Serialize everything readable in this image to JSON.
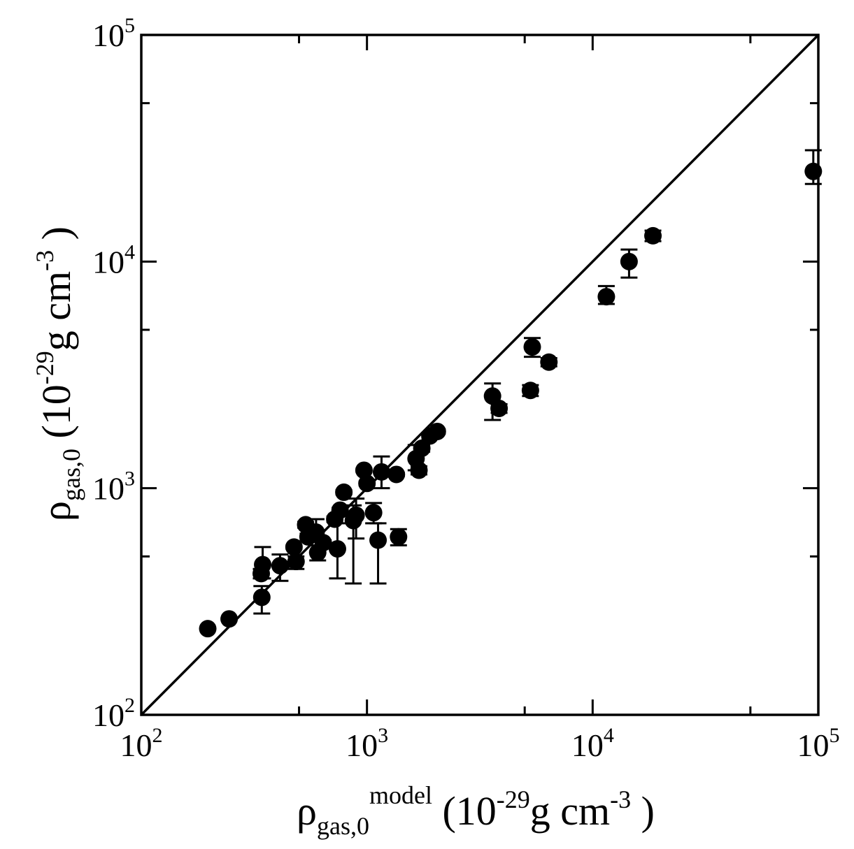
{
  "chart_data": {
    "type": "scatter",
    "title": "",
    "x_scale": "log",
    "y_scale": "log",
    "xlim": [
      100,
      100000
    ],
    "ylim": [
      100,
      100000
    ],
    "grid": false,
    "legend": "none",
    "xlabel": {
      "symbol": "ρ",
      "subscript": "gas,0",
      "superscript": "model",
      "open": " (10",
      "exponent": "-29",
      "unit": "g cm",
      "unit_exponent": "-3",
      "close": " )"
    },
    "ylabel": {
      "symbol": "ρ",
      "subscript": "gas,0",
      "open": " (10",
      "exponent": "-29",
      "unit": "g cm",
      "unit_exponent": "-3",
      "close": " )"
    },
    "x_ticks": [
      {
        "value": 100,
        "base": "10",
        "exp": "2"
      },
      {
        "value": 1000,
        "base": "10",
        "exp": "3"
      },
      {
        "value": 10000,
        "base": "10",
        "exp": "4"
      },
      {
        "value": 100000,
        "base": "10",
        "exp": "5"
      }
    ],
    "y_ticks": [
      {
        "value": 100,
        "base": "10",
        "exp": "2"
      },
      {
        "value": 1000,
        "base": "10",
        "exp": "3"
      },
      {
        "value": 10000,
        "base": "10",
        "exp": "4"
      },
      {
        "value": 100000,
        "base": "10",
        "exp": "5"
      }
    ],
    "reference_line": {
      "from": [
        100,
        100
      ],
      "to": [
        100000,
        100000
      ],
      "color": "#000000"
    },
    "marker_color": "#000000",
    "series": [
      {
        "points": [
          {
            "x": 197,
            "y": 240,
            "lo": 240,
            "hi": 240
          },
          {
            "x": 245,
            "y": 265,
            "lo": 265,
            "hi": 265
          },
          {
            "x": 342,
            "y": 330,
            "lo": 280,
            "hi": 370
          },
          {
            "x": 340,
            "y": 420,
            "lo": 400,
            "hi": 440
          },
          {
            "x": 345,
            "y": 460,
            "lo": 400,
            "hi": 550
          },
          {
            "x": 412,
            "y": 455,
            "lo": 390,
            "hi": 510
          },
          {
            "x": 485,
            "y": 475,
            "lo": 440,
            "hi": 500
          },
          {
            "x": 475,
            "y": 550,
            "lo": 540,
            "hi": 560
          },
          {
            "x": 535,
            "y": 690,
            "lo": 670,
            "hi": 710
          },
          {
            "x": 548,
            "y": 610,
            "lo": 590,
            "hi": 630
          },
          {
            "x": 595,
            "y": 640,
            "lo": 620,
            "hi": 730
          },
          {
            "x": 605,
            "y": 520,
            "lo": 480,
            "hi": 560
          },
          {
            "x": 640,
            "y": 575,
            "lo": 560,
            "hi": 590
          },
          {
            "x": 720,
            "y": 730,
            "lo": 710,
            "hi": 750
          },
          {
            "x": 740,
            "y": 540,
            "lo": 400,
            "hi": 700
          },
          {
            "x": 760,
            "y": 800,
            "lo": 780,
            "hi": 820
          },
          {
            "x": 790,
            "y": 960,
            "lo": 940,
            "hi": 980
          },
          {
            "x": 870,
            "y": 720,
            "lo": 380,
            "hi": 840
          },
          {
            "x": 895,
            "y": 760,
            "lo": 600,
            "hi": 900
          },
          {
            "x": 970,
            "y": 1200,
            "lo": 1180,
            "hi": 1220
          },
          {
            "x": 1000,
            "y": 1050,
            "lo": 1030,
            "hi": 1070
          },
          {
            "x": 1070,
            "y": 780,
            "lo": 700,
            "hi": 860
          },
          {
            "x": 1120,
            "y": 590,
            "lo": 380,
            "hi": 700
          },
          {
            "x": 1160,
            "y": 1180,
            "lo": 1000,
            "hi": 1380
          },
          {
            "x": 1350,
            "y": 1150,
            "lo": 1130,
            "hi": 1170
          },
          {
            "x": 1380,
            "y": 610,
            "lo": 560,
            "hi": 660
          },
          {
            "x": 1650,
            "y": 1350,
            "lo": 1200,
            "hi": 1550
          },
          {
            "x": 1700,
            "y": 1200,
            "lo": 1150,
            "hi": 1250
          },
          {
            "x": 1750,
            "y": 1500,
            "lo": 1450,
            "hi": 1550
          },
          {
            "x": 1900,
            "y": 1700,
            "lo": 1650,
            "hi": 1750
          },
          {
            "x": 2050,
            "y": 1780,
            "lo": 1740,
            "hi": 1820
          },
          {
            "x": 3600,
            "y": 2550,
            "lo": 2000,
            "hi": 2900
          },
          {
            "x": 3850,
            "y": 2250,
            "lo": 2150,
            "hi": 2350
          },
          {
            "x": 5300,
            "y": 2700,
            "lo": 2550,
            "hi": 2850
          },
          {
            "x": 5400,
            "y": 4200,
            "lo": 3800,
            "hi": 4600
          },
          {
            "x": 6400,
            "y": 3600,
            "lo": 3450,
            "hi": 3750
          },
          {
            "x": 11500,
            "y": 7000,
            "lo": 6500,
            "hi": 7800
          },
          {
            "x": 14500,
            "y": 10000,
            "lo": 8500,
            "hi": 11300
          },
          {
            "x": 18500,
            "y": 13000,
            "lo": 12300,
            "hi": 13700
          },
          {
            "x": 95000,
            "y": 25000,
            "lo": 22000,
            "hi": 31000
          }
        ]
      }
    ]
  }
}
